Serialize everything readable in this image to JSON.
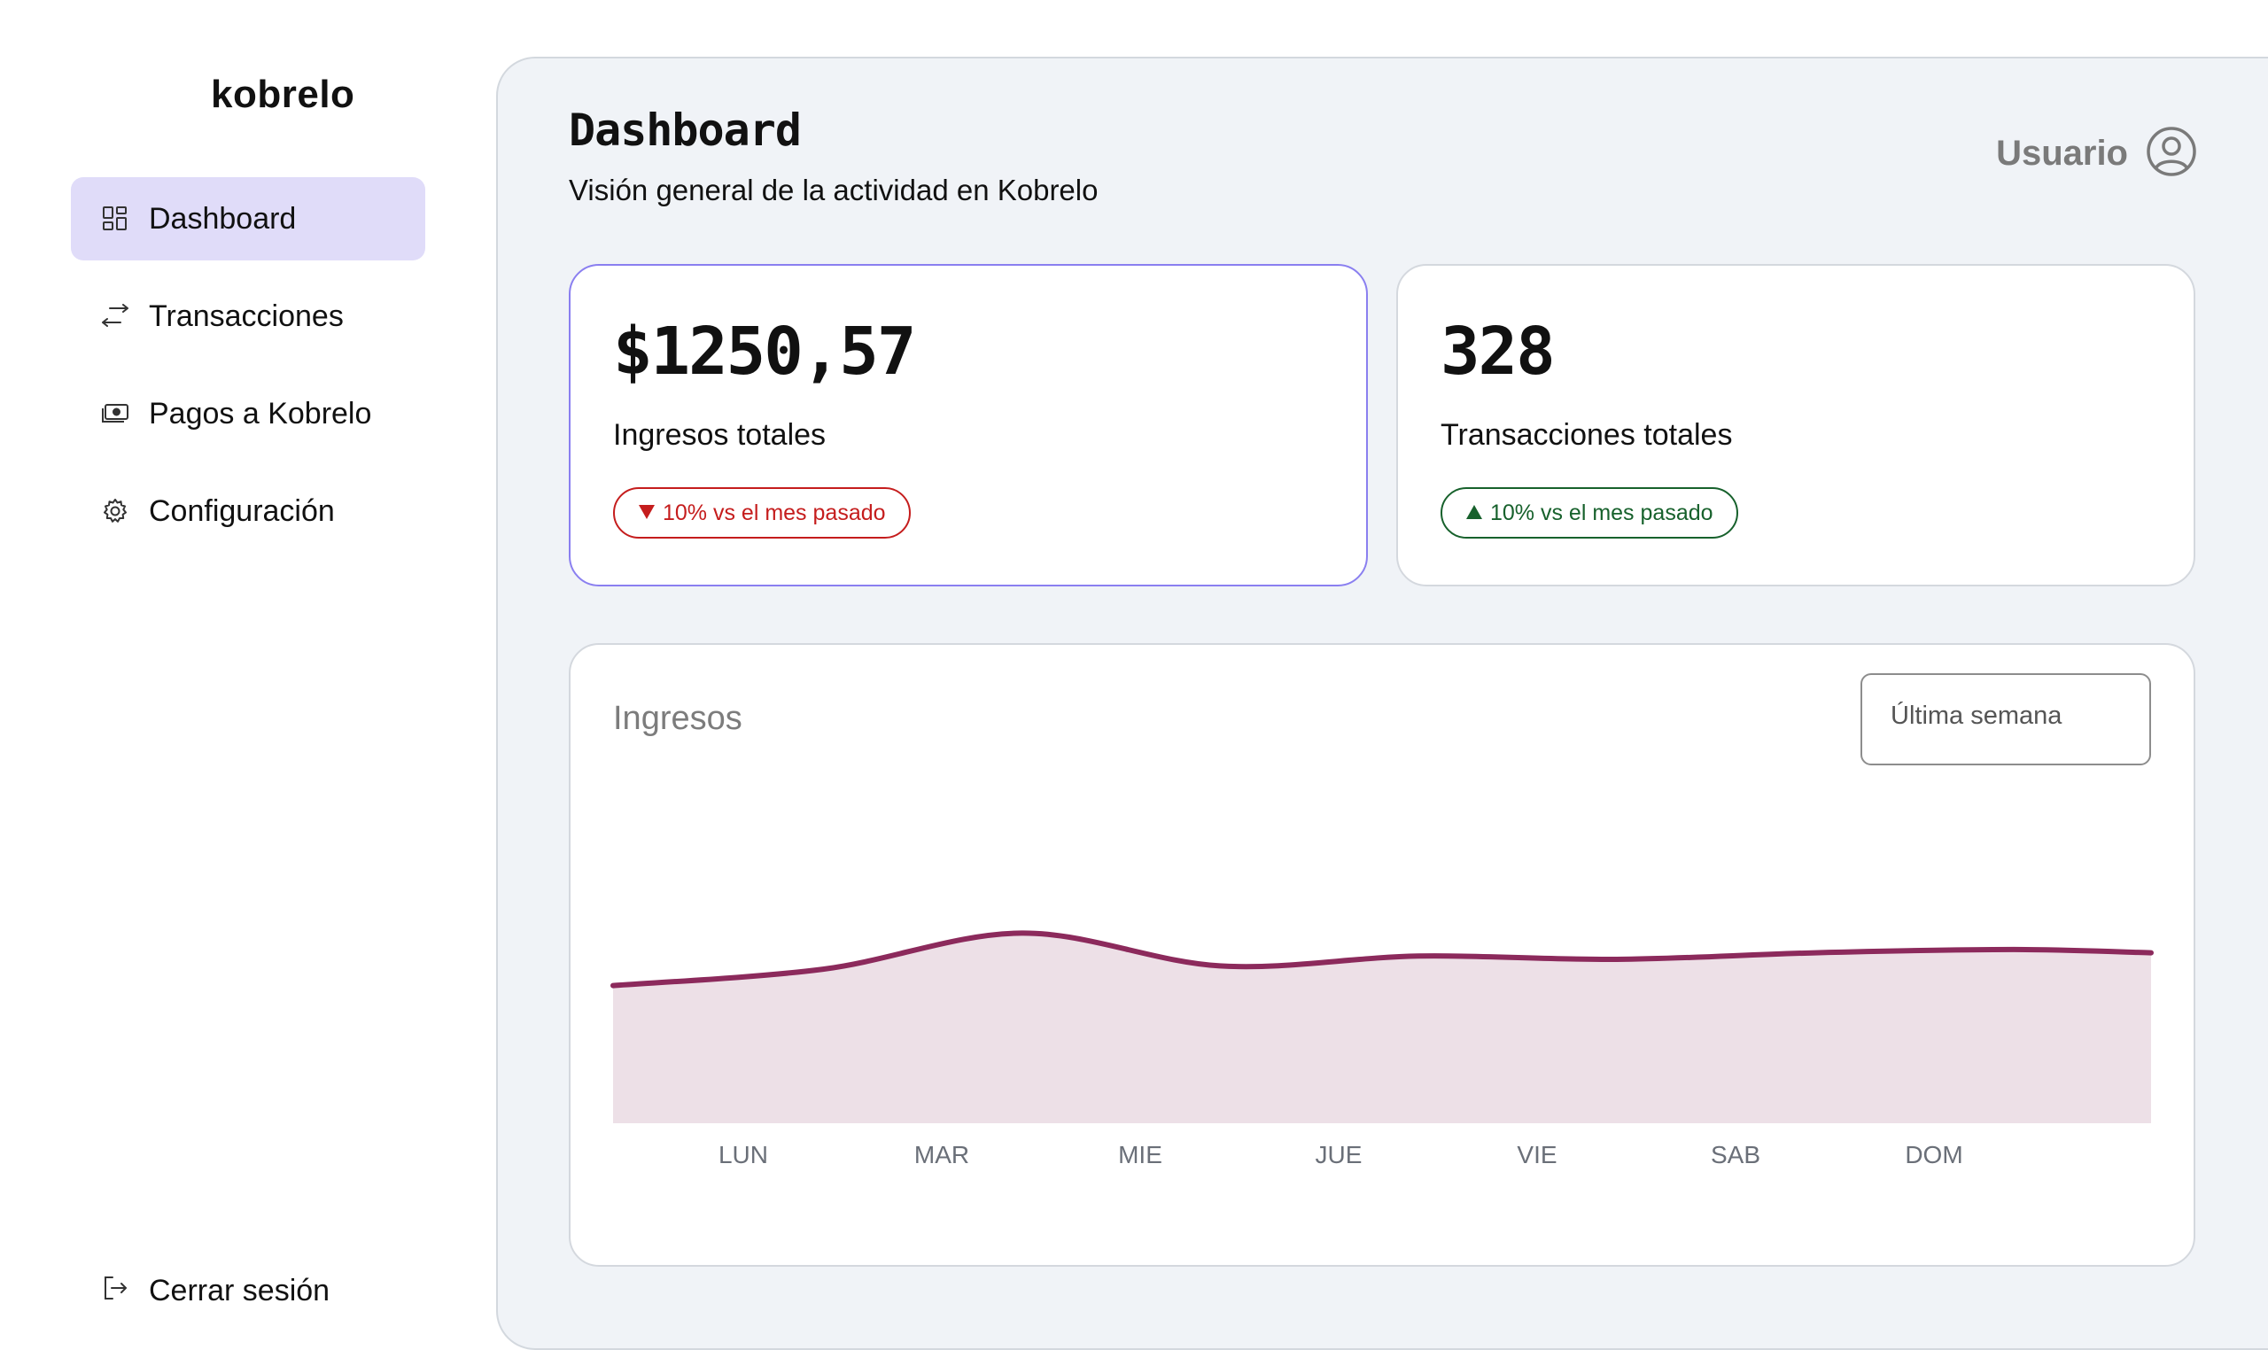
{
  "app": {
    "logo": "kobrelo"
  },
  "sidebar": {
    "items": [
      {
        "label": "Dashboard",
        "icon": "grid-icon",
        "active": true
      },
      {
        "label": "Transacciones",
        "icon": "arrows-swap-icon",
        "active": false
      },
      {
        "label": "Pagos a Kobrelo",
        "icon": "cash-icon",
        "active": false
      },
      {
        "label": "Configuración",
        "icon": "gear-icon",
        "active": false
      }
    ],
    "logout": {
      "label": "Cerrar sesión",
      "icon": "logout-icon"
    }
  },
  "header": {
    "title": "Dashboard",
    "subtitle": "Visión general de la actividad en Kobrelo",
    "user_label": "Usuario",
    "user_icon": "user-circle-icon"
  },
  "stats": [
    {
      "value": "$1250,57",
      "label": "Ingresos totales",
      "badge": "10% vs el mes pasado",
      "trend": "down",
      "trend_color": "#c51d1d"
    },
    {
      "value": "328",
      "label": "Transacciones totales",
      "badge": "10% vs el mes pasado",
      "trend": "up",
      "trend_color": "#17612c"
    }
  ],
  "chart_card": {
    "title": "Ingresos",
    "range_select": "Última semana"
  },
  "chart_data": {
    "type": "area",
    "categories": [
      "LUN",
      "MAR",
      "MIE",
      "JUE",
      "VIE",
      "SAB",
      "DOM"
    ],
    "series": [
      {
        "values": [
          0.47,
          0.58,
          0.48,
          0.51,
          0.5,
          0.52,
          0.53
        ]
      }
    ],
    "ylim": [
      0,
      1
    ],
    "grid": false,
    "line_color": "#8c2a5c",
    "fill_color": "#ede0e7"
  },
  "colors": {
    "accent": "#e0dcf9",
    "selected_border": "#8a7ff0",
    "panel_bg": "#f0f3f7"
  }
}
